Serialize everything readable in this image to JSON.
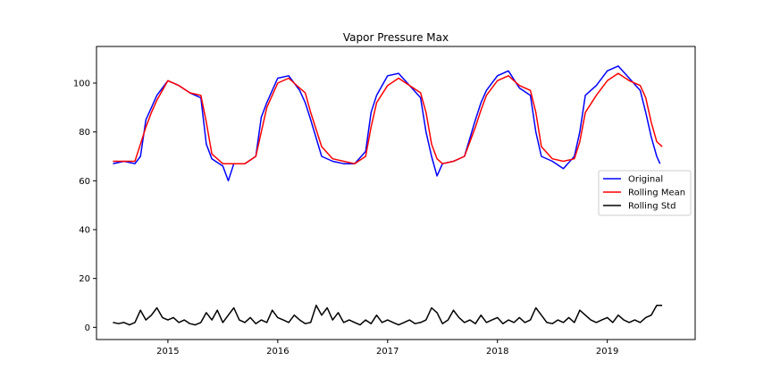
{
  "chart_data": {
    "type": "line",
    "title": "Vapor Pressure Max",
    "xlabel": "",
    "ylabel": "",
    "xlim": [
      2014.35,
      2019.8
    ],
    "ylim": [
      -5,
      115
    ],
    "x_ticks": [
      2015,
      2016,
      2017,
      2018,
      2019
    ],
    "x_tick_labels": [
      "2015",
      "2016",
      "2017",
      "2018",
      "2019"
    ],
    "y_ticks": [
      0,
      20,
      40,
      60,
      80,
      100
    ],
    "y_tick_labels": [
      "0",
      "20",
      "40",
      "60",
      "80",
      "100"
    ],
    "grid": false,
    "legend_position": "center-right",
    "series": [
      {
        "name": "Original",
        "color": "#0000ff",
        "x": [
          2014.5,
          2014.6,
          2014.7,
          2014.75,
          2014.8,
          2014.85,
          2014.9,
          2015.0,
          2015.1,
          2015.2,
          2015.3,
          2015.35,
          2015.4,
          2015.5,
          2015.55,
          2015.6,
          2015.7,
          2015.8,
          2015.85,
          2015.9,
          2016.0,
          2016.1,
          2016.2,
          2016.25,
          2016.3,
          2016.4,
          2016.5,
          2016.6,
          2016.7,
          2016.8,
          2016.85,
          2016.9,
          2017.0,
          2017.1,
          2017.2,
          2017.3,
          2017.35,
          2017.4,
          2017.45,
          2017.5,
          2017.6,
          2017.7,
          2017.8,
          2017.85,
          2017.9,
          2018.0,
          2018.1,
          2018.2,
          2018.3,
          2018.35,
          2018.4,
          2018.5,
          2018.6,
          2018.7,
          2018.75,
          2018.8,
          2018.9,
          2019.0,
          2019.1,
          2019.2,
          2019.3,
          2019.35,
          2019.4,
          2019.45,
          2019.48
        ],
        "values": [
          67,
          68,
          67,
          70,
          85,
          90,
          95,
          101,
          99,
          96,
          94,
          75,
          69,
          66,
          60,
          67,
          67,
          70,
          86,
          92,
          102,
          103,
          97,
          92,
          85,
          70,
          68,
          67,
          67,
          72,
          88,
          95,
          103,
          104,
          99,
          94,
          80,
          70,
          62,
          67,
          68,
          70,
          85,
          92,
          97,
          103,
          105,
          98,
          95,
          80,
          70,
          68,
          65,
          70,
          80,
          95,
          99,
          105,
          107,
          102,
          97,
          88,
          78,
          70,
          67
        ]
      },
      {
        "name": "Rolling Mean",
        "color": "#ff0000",
        "x": [
          2014.5,
          2014.6,
          2014.7,
          2014.75,
          2014.8,
          2014.85,
          2014.9,
          2015.0,
          2015.1,
          2015.2,
          2015.3,
          2015.35,
          2015.4,
          2015.5,
          2015.6,
          2015.7,
          2015.8,
          2015.85,
          2015.9,
          2016.0,
          2016.1,
          2016.2,
          2016.25,
          2016.3,
          2016.4,
          2016.5,
          2016.6,
          2016.7,
          2016.8,
          2016.85,
          2016.9,
          2017.0,
          2017.1,
          2017.2,
          2017.3,
          2017.35,
          2017.4,
          2017.45,
          2017.5,
          2017.6,
          2017.7,
          2017.8,
          2017.85,
          2017.9,
          2018.0,
          2018.1,
          2018.2,
          2018.3,
          2018.35,
          2018.4,
          2018.5,
          2018.6,
          2018.7,
          2018.75,
          2018.8,
          2018.9,
          2019.0,
          2019.1,
          2019.2,
          2019.3,
          2019.35,
          2019.4,
          2019.45,
          2019.5
        ],
        "values": [
          68,
          68,
          68,
          75,
          82,
          88,
          93,
          101,
          99,
          96,
          95,
          84,
          71,
          67,
          67,
          67,
          70,
          80,
          90,
          100,
          102,
          98,
          96,
          88,
          74,
          69,
          68,
          67,
          70,
          82,
          92,
          99,
          102,
          99,
          96,
          88,
          75,
          69,
          67,
          68,
          70,
          82,
          89,
          95,
          101,
          103,
          99,
          97,
          88,
          74,
          69,
          68,
          69,
          76,
          88,
          95,
          101,
          104,
          101,
          99,
          94,
          84,
          76,
          74
        ]
      },
      {
        "name": "Rolling Std",
        "color": "#000000",
        "x": [
          2014.5,
          2014.55,
          2014.6,
          2014.65,
          2014.7,
          2014.75,
          2014.8,
          2014.85,
          2014.9,
          2014.95,
          2015.0,
          2015.05,
          2015.1,
          2015.15,
          2015.2,
          2015.25,
          2015.3,
          2015.35,
          2015.4,
          2015.45,
          2015.5,
          2015.55,
          2015.6,
          2015.65,
          2015.7,
          2015.75,
          2015.8,
          2015.85,
          2015.9,
          2015.95,
          2016.0,
          2016.05,
          2016.1,
          2016.15,
          2016.2,
          2016.25,
          2016.3,
          2016.35,
          2016.4,
          2016.45,
          2016.5,
          2016.55,
          2016.6,
          2016.65,
          2016.7,
          2016.75,
          2016.8,
          2016.85,
          2016.9,
          2016.95,
          2017.0,
          2017.05,
          2017.1,
          2017.15,
          2017.2,
          2017.25,
          2017.3,
          2017.35,
          2017.4,
          2017.45,
          2017.5,
          2017.55,
          2017.6,
          2017.65,
          2017.7,
          2017.75,
          2017.8,
          2017.85,
          2017.9,
          2017.95,
          2018.0,
          2018.05,
          2018.1,
          2018.15,
          2018.2,
          2018.25,
          2018.3,
          2018.35,
          2018.4,
          2018.45,
          2018.5,
          2018.55,
          2018.6,
          2018.65,
          2018.7,
          2018.75,
          2018.8,
          2018.85,
          2018.9,
          2018.95,
          2019.0,
          2019.05,
          2019.1,
          2019.15,
          2019.2,
          2019.25,
          2019.3,
          2019.35,
          2019.4,
          2019.45,
          2019.5
        ],
        "values": [
          2,
          1.5,
          2,
          1,
          2,
          7,
          3,
          5,
          8,
          4,
          3,
          4,
          2,
          3,
          1.5,
          1,
          2,
          6,
          3,
          7,
          2,
          5,
          8,
          3,
          2,
          4,
          1.5,
          3,
          2,
          7,
          4,
          3,
          2,
          5,
          3,
          1.5,
          2,
          9,
          5,
          8,
          3,
          6,
          2,
          3,
          2,
          1,
          3,
          1.5,
          5,
          2,
          3,
          2,
          1,
          2,
          3,
          1.5,
          2,
          3,
          8,
          6,
          1.5,
          3,
          7,
          4,
          2,
          3,
          1.5,
          5,
          2,
          3,
          4,
          1.5,
          3,
          2,
          4,
          2,
          3,
          8,
          5,
          2,
          1.5,
          3,
          2,
          4,
          2,
          7,
          5,
          3,
          2,
          3,
          4,
          2,
          5,
          3,
          2,
          3,
          2,
          4,
          5,
          9,
          9
        ]
      }
    ]
  }
}
